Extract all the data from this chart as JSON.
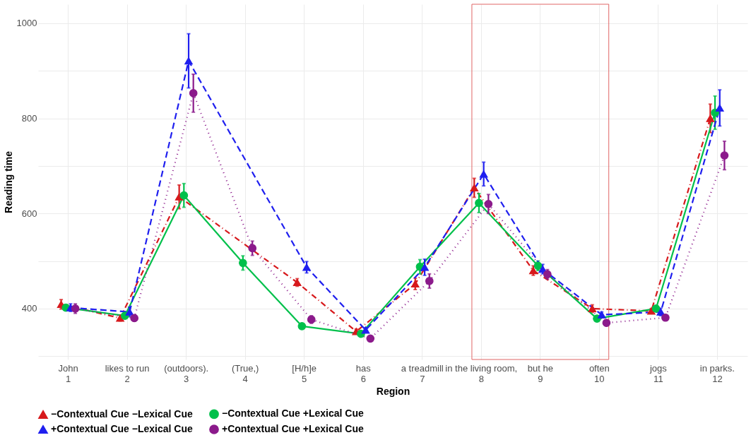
{
  "chart_data": {
    "type": "line",
    "xlabel": "Region",
    "ylabel": "Reading time",
    "categories": [
      "John\n1",
      "likes to run\n2",
      "(outdoors).\n3",
      "(True,)\n4",
      "[H/h]e\n5",
      "has\n6",
      "a treadmill\n7",
      "in the living room,\n8",
      "but he\n9",
      "often\n10",
      "jogs\n11",
      "in parks.\n12"
    ],
    "ylim": [
      293,
      1040
    ],
    "yticks": [
      {
        "value": 300,
        "label": null
      },
      400,
      {
        "value": 500,
        "label": null
      },
      600,
      {
        "value": 700,
        "label": null
      },
      800,
      {
        "value": 900,
        "label": null
      },
      1000
    ],
    "grid": true,
    "legend": "bottom",
    "series": [
      {
        "name": "−Contextual Cue −Lexical Cue",
        "color": "#d7191c",
        "marker": "triangle",
        "line_style": "dashdot",
        "values": [
          409,
          380,
          635,
          null,
          455,
          352,
          452,
          654,
          480,
          400,
          395,
          800
        ],
        "errors": [
          10,
          6,
          25,
          null,
          8,
          5,
          12,
          20,
          10,
          8,
          5,
          30
        ]
      },
      {
        "name": "−Contextual Cue +Lexical Cue",
        "color": "#00c04b",
        "marker": "circle",
        "line_style": "solid",
        "values": [
          402,
          385,
          638,
          496,
          363,
          347,
          488,
          622,
          490,
          379,
          400,
          812
        ],
        "errors": [
          6,
          5,
          25,
          15,
          5,
          5,
          15,
          20,
          10,
          5,
          5,
          35
        ]
      },
      {
        "name": "+Contextual Cue −Lexical Cue",
        "color": "#1f1fef",
        "marker": "triangle",
        "line_style": "dashed",
        "values": [
          402,
          393,
          921,
          null,
          487,
          355,
          487,
          683,
          483,
          387,
          393,
          822
        ],
        "errors": [
          8,
          10,
          57,
          null,
          12,
          5,
          17,
          25,
          10,
          6,
          8,
          38
        ]
      },
      {
        "name": "+Contextual Cue +Lexical Cue",
        "color": "#8b1a8b",
        "marker": "circle",
        "line_style": "dotted",
        "values": [
          400,
          380,
          853,
          527,
          377,
          337,
          458,
          620,
          472,
          370,
          381,
          722
        ],
        "errors": [
          10,
          6,
          40,
          15,
          8,
          6,
          15,
          20,
          10,
          6,
          6,
          30
        ]
      }
    ]
  }
}
